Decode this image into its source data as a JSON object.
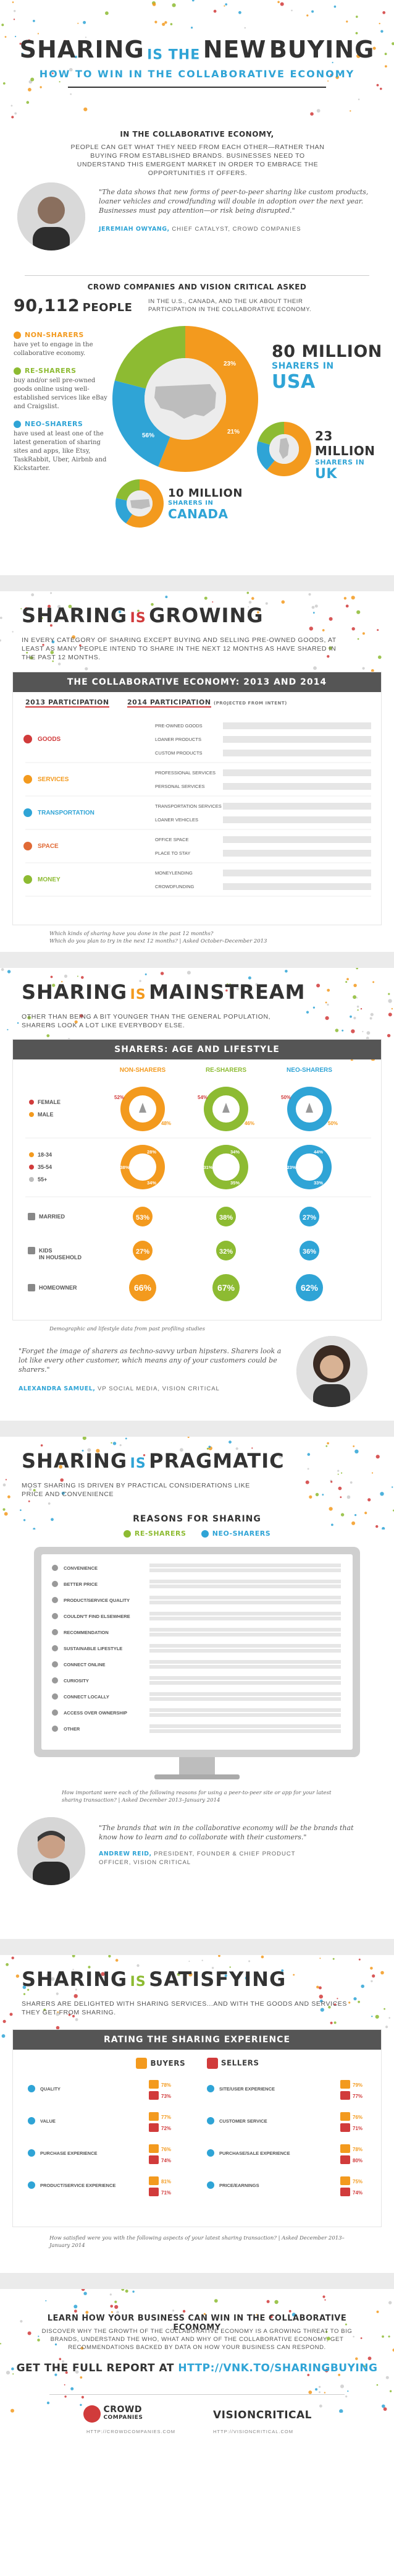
{
  "header": {
    "title_part1": "SHARING",
    "title_part2": "IS THE",
    "title_part3": "NEW",
    "title_part4": "BUYING",
    "subtitle": "HOW TO WIN IN THE COLLABORATIVE ECONOMY"
  },
  "intro": {
    "heading": "IN THE COLLABORATIVE ECONOMY,",
    "text": "PEOPLE CAN GET WHAT THEY NEED FROM EACH OTHER—RATHER THAN BUYING FROM ESTABLISHED BRANDS. BUSINESSES NEED TO UNDERSTAND THIS EMERGENT MARKET IN ORDER TO EMBRACE THE OPPORTUNITIES IT OFFERS.",
    "quote": "\"The data shows that new forms of peer-to-peer sharing like custom products, loaner vehicles and crowdfunding will double in adoption over the next year. Businesses must pay attention—or risk being disrupted.\"",
    "quote_author": "JEREMIAH OWYANG,",
    "quote_role": "CHIEF CATALYST, CROWD COMPANIES"
  },
  "survey": {
    "heading": "CROWD COMPANIES AND VISION CRITICAL ASKED",
    "count": "90,112",
    "count_label": "PEOPLE",
    "count_desc": "IN THE U.S., CANADA, AND THE UK ABOUT THEIR PARTICIPATION IN THE COLLABORATIVE ECONOMY.",
    "segments": [
      {
        "name": "NON-SHARERS",
        "desc": "have yet to engage in the collaborative economy.",
        "color": "#f39a1e"
      },
      {
        "name": "RE-SHARERS",
        "desc": "buy and/or sell pre-owned goods online using well-established services like eBay and Craigslist.",
        "color": "#8dbb32"
      },
      {
        "name": "NEO-SHARERS",
        "desc": "have used at least one of the latest generation of sharing sites and apps, like Etsy, TaskRabbit, Uber, Airbnb and Kickstarter.",
        "color": "#2fa4d6"
      }
    ],
    "usa_pct": [
      "23%",
      "21%",
      "56%"
    ],
    "usa_number": "80 MILLION",
    "usa_label1": "SHARERS IN",
    "usa_label2": "USA",
    "uk_number": "23 MILLION",
    "uk_label1": "SHARERS IN",
    "uk_label2": "UK",
    "canada_number": "10 MILLION",
    "canada_label1": "SHARERS IN",
    "canada_label2": "CANADA"
  },
  "growing": {
    "title_a": "SHARING",
    "title_b": "IS",
    "title_c": "GROWING",
    "text": "IN EVERY CATEGORY OF SHARING EXCEPT BUYING AND SELLING PRE-OWNED GOODS, AT LEAST AS MANY PEOPLE INTEND TO SHARE IN THE NEXT 12 MONTHS AS HAVE SHARED IN THE PAST 12 MONTHS.",
    "bar_title": "THE COLLABORATIVE ECONOMY: 2013 AND 2014",
    "legend_2013": "2013 PARTICIPATION",
    "legend_2014": "2014 PARTICIPATION",
    "legend_2014_note": "(PROJECTED FROM INTENT)",
    "categories": [
      {
        "name": "GOODS",
        "color": "#d13b3b",
        "items": [
          "PRE-OWNED GOODS",
          "LOANER PRODUCTS",
          "CUSTOM PRODUCTS"
        ]
      },
      {
        "name": "SERVICES",
        "color": "#f39a1e",
        "items": [
          "PROFESSIONAL SERVICES",
          "PERSONAL SERVICES"
        ]
      },
      {
        "name": "TRANSPORTATION",
        "color": "#2fa4d6",
        "items": [
          "TRANSPORTATION SERVICES",
          "LOANER VEHICLES"
        ]
      },
      {
        "name": "SPACE",
        "color": "#e06a36",
        "items": [
          "OFFICE SPACE",
          "PLACE TO STAY"
        ]
      },
      {
        "name": "MONEY",
        "color": "#8dbb32",
        "items": [
          "MONEYLENDING",
          "CROWDFUNDING"
        ]
      }
    ],
    "source_1": "Which kinds of sharing have you done in the past 12 months?",
    "source_2": "Which do you plan to try in the next 12 months? | Asked October–December 2013"
  },
  "mainstream": {
    "title_a": "SHARING",
    "title_b": "IS",
    "title_c": "MAINSTREAM",
    "text": "OTHER THAN BEING A BIT YOUNGER THAN THE GENERAL POPULATION, SHARERS LOOK A LOT LIKE EVERYBODY ELSE.",
    "panel_title": "SHARERS: AGE AND LIFESTYLE",
    "col_labels": [
      "NON-SHARERS",
      "RE-SHARERS",
      "NEO-SHARERS"
    ],
    "gender_labels": [
      "FEMALE",
      "MALE"
    ],
    "age_labels": [
      "18-34",
      "35-54",
      "55+"
    ],
    "married_label": "MARRIED",
    "kids_label1": "KIDS",
    "kids_label2": "IN HOUSEHOLD",
    "home_label": "HOMEOWNER",
    "gender_pct": [
      [
        "52%",
        "48%"
      ],
      [
        "54%",
        "46%"
      ],
      [
        "50%",
        "50%"
      ]
    ],
    "age_pct": [
      [
        "28%",
        "34%",
        "38%"
      ],
      [
        "34%",
        "35%",
        "31%"
      ],
      [
        "44%",
        "33%",
        "23%"
      ]
    ],
    "married_pct": [
      "53%",
      "38%",
      "27%"
    ],
    "kids_pct": [
      "27%",
      "32%",
      "36%"
    ],
    "home_pct": [
      "66%",
      "67%",
      "62%"
    ],
    "source": "Demographic and lifestyle data from past profiling studies",
    "quote": "\"Forget the image of sharers as techno-savvy urban hipsters. Sharers look a lot like every other customer, which means any of your customers could be sharers.\"",
    "quote_author": "ALEXANDRA SAMUEL,",
    "quote_role": "VP SOCIAL MEDIA, VISION CRITICAL"
  },
  "pragmatic": {
    "title_a": "SHARING",
    "title_b": "IS",
    "title_c": "PRAGMATIC",
    "text": "MOST SHARING IS DRIVEN BY PRACTICAL CONSIDERATIONS LIKE PRICE AND CONVENIENCE",
    "panel_title": "REASONS FOR SHARING",
    "legend_re": "RE-SHARERS",
    "legend_neo": "NEO-SHARERS",
    "reasons": [
      "CONVENIENCE",
      "BETTER PRICE",
      "PRODUCT/SERVICE QUALITY",
      "COULDN'T FIND ELSEWHERE",
      "RECOMMENDATION",
      "SUSTAINABLE LIFESTYLE",
      "CONNECT ONLINE",
      "CURIOSITY",
      "CONNECT LOCALLY",
      "ACCESS OVER OWNERSHIP",
      "OTHER"
    ],
    "source": "How important were each of the following reasons for using a peer-to-peer site or app for your latest sharing transaction? | Asked December 2013–January 2014",
    "quote": "\"The brands that win in the collaborative economy will be the brands that know how to learn and to collaborate with their customers.\"",
    "quote_author": "ANDREW REID,",
    "quote_role": "PRESIDENT, FOUNDER & CHIEF PRODUCT OFFICER, VISION CRITICAL"
  },
  "satisfying": {
    "title_a": "SHARING",
    "title_b": "IS",
    "title_c": "SATISFYING",
    "text": "SHARERS ARE DELIGHTED WITH SHARING SERVICES...AND WITH THE GOODS AND SERVICES THEY GET FROM SHARING.",
    "panel_title": "RATING THE SHARING EXPERIENCE",
    "legend_buyers": "BUYERS",
    "legend_sellers": "SELLERS",
    "left_items": [
      "QUALITY",
      "VALUE",
      "PURCHASE EXPERIENCE",
      "PRODUCT/SERVICE EXPERIENCE"
    ],
    "right_items": [
      "SITE/USER EXPERIENCE",
      "CUSTOMER SERVICE",
      "PURCHASE/SALE EXPERIENCE",
      "PRICE/EARNINGS"
    ],
    "left_buyers": [
      "78%",
      "77%",
      "76%",
      "81%"
    ],
    "left_sellers": [
      "73%",
      "72%",
      "74%",
      "71%"
    ],
    "right_buyers": [
      "79%",
      "76%",
      "78%",
      "75%"
    ],
    "right_sellers": [
      "77%",
      "71%",
      "80%",
      "74%"
    ],
    "source": "How satisfied were you with the following aspects of your latest sharing transaction? | Asked December 2013–January 2014"
  },
  "footer": {
    "heading": "LEARN HOW YOUR BUSINESS CAN WIN IN THE COLLABORATIVE ECONOMY",
    "text": "DISCOVER WHY THE GROWTH OF THE COLLABORATIVE ECONOMY IS A GROWING THREAT TO BIG BRANDS, UNDERSTAND THE WHO, WHAT AND WHY OF THE COLLABORATIVE ECONOMY, GET RECOMMENDATIONS BACKED BY DATA ON HOW YOUR BUSINESS CAN RESPOND.",
    "cta_pre": "GET THE FULL REPORT AT",
    "cta_url": "HTTP://VNK.TO/SHARINGBUYING",
    "logo1_a": "CROWD",
    "logo1_b": "COMPANIES",
    "logo2": "VISIONCRITICAL",
    "link1": "HTTP://CROWDCOMPANIES.COM",
    "link2": "HTTP://VISIONCRITICAL.COM"
  },
  "colors": {
    "non": "#f39a1e",
    "re": "#8dbb32",
    "neo": "#2fa4d6",
    "red": "#d13b3b",
    "dark": "#333333"
  }
}
